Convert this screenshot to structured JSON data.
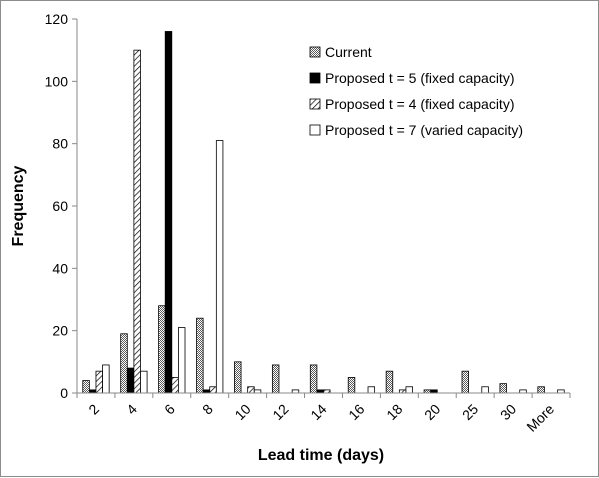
{
  "chart_data": {
    "type": "bar",
    "title": "",
    "xlabel": "Lead time (days)",
    "ylabel": "Frequency",
    "ylim": [
      0,
      120
    ],
    "yticks": [
      0,
      20,
      40,
      60,
      80,
      100,
      120
    ],
    "grid": false,
    "legend_position": "top-right",
    "categories": [
      "2",
      "4",
      "6",
      "8",
      "10",
      "12",
      "14",
      "16",
      "18",
      "20",
      "25",
      "30",
      "More"
    ],
    "series": [
      {
        "name": "Current",
        "pattern": "dotted-gray",
        "values": [
          4,
          19,
          28,
          24,
          10,
          9,
          9,
          5,
          7,
          1,
          7,
          3,
          2
        ]
      },
      {
        "name": "Proposed t = 5 (fixed capacity)",
        "pattern": "solid-black",
        "values": [
          1,
          8,
          116,
          1,
          0,
          0,
          1,
          0,
          0,
          1,
          0,
          0,
          0
        ]
      },
      {
        "name": "Proposed t = 4 (fixed capacity)",
        "pattern": "diagonal-hatch",
        "values": [
          7,
          110,
          5,
          2,
          2,
          0,
          1,
          0,
          1,
          0,
          0,
          0,
          0
        ]
      },
      {
        "name": "Proposed t = 7 (varied capacity)",
        "pattern": "white",
        "values": [
          9,
          7,
          21,
          81,
          1,
          1,
          0,
          2,
          2,
          0,
          2,
          1,
          1
        ]
      }
    ]
  }
}
